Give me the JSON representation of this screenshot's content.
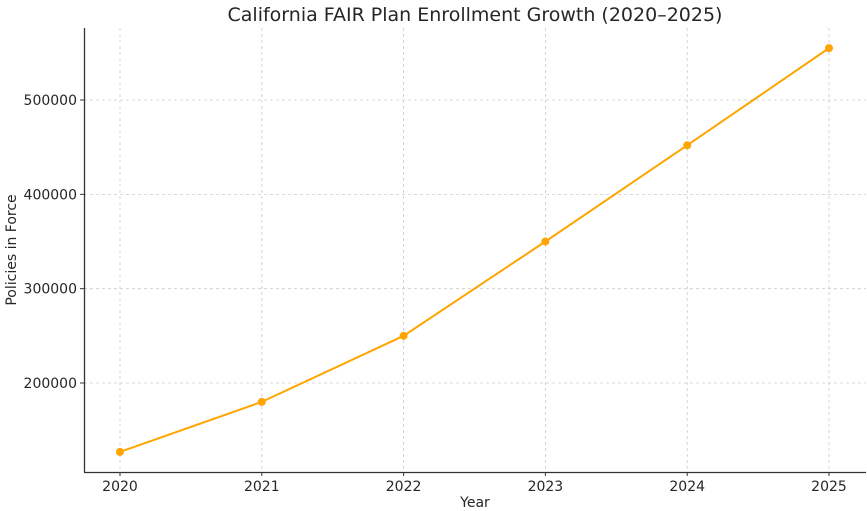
{
  "chart_data": {
    "type": "line",
    "title": "California FAIR Plan Enrollment Growth (2020–2025)",
    "xlabel": "Year",
    "ylabel": "Policies in Force",
    "categories": [
      "2020",
      "2021",
      "2022",
      "2023",
      "2024",
      "2025"
    ],
    "series": [
      {
        "name": "Policies in Force",
        "values": [
          127000,
          180000,
          250000,
          350000,
          452000,
          555000
        ],
        "color": "#FFA500",
        "marker": "circle"
      }
    ],
    "yticks": [
      200000,
      300000,
      400000,
      500000
    ],
    "ytick_labels": [
      "200000",
      "300000",
      "400000",
      "500000"
    ],
    "ylim": [
      106000,
      577000
    ],
    "grid": true,
    "legend": false
  }
}
